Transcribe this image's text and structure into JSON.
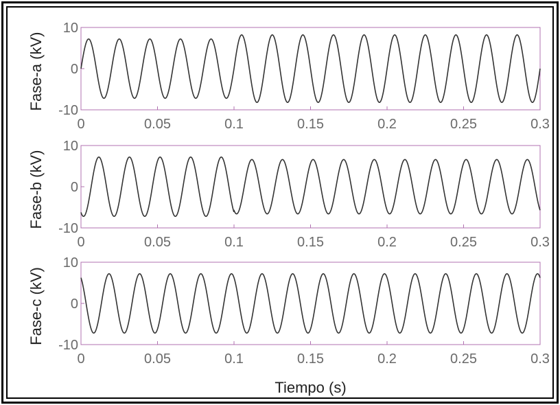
{
  "chart_data": [
    {
      "type": "line",
      "ylabel": "Fase-a (kV)",
      "xlabel": "",
      "xlim": [
        0,
        0.3
      ],
      "ylim": [
        -10,
        10
      ],
      "xticks": [
        0,
        0.05,
        0.1,
        0.15,
        0.2,
        0.25,
        0.3
      ],
      "xtick_labels": [
        "0",
        "0.05",
        "0.1",
        "0.15",
        "0.2",
        "0.25",
        "0.3"
      ],
      "yticks": [
        -10,
        0,
        10
      ],
      "ytick_labels": [
        "-10",
        "0",
        "10"
      ],
      "grid": false,
      "series": [
        {
          "frequency_hz": 50,
          "phase_deg": 0,
          "segments": [
            {
              "t_start": 0,
              "t_end": 0.1,
              "amplitude": 7.2
            },
            {
              "t_start": 0.1,
              "t_end": 0.3,
              "amplitude": 8.2
            }
          ],
          "color": "#333333"
        }
      ]
    },
    {
      "type": "line",
      "ylabel": "Fase-b (kV)",
      "xlabel": "",
      "xlim": [
        0,
        0.3
      ],
      "ylim": [
        -10,
        10
      ],
      "xticks": [
        0,
        0.05,
        0.1,
        0.15,
        0.2,
        0.25,
        0.3
      ],
      "xtick_labels": [
        "0",
        "0.05",
        "0.1",
        "0.15",
        "0.2",
        "0.25",
        "0.3"
      ],
      "yticks": [
        -10,
        0,
        10
      ],
      "ytick_labels": [
        "-10",
        "0",
        "10"
      ],
      "grid": false,
      "series": [
        {
          "frequency_hz": 50,
          "phase_deg": -120,
          "segments": [
            {
              "t_start": 0,
              "t_end": 0.1,
              "amplitude": 7.2
            },
            {
              "t_start": 0.1,
              "t_end": 0.3,
              "amplitude": 6.6
            }
          ],
          "color": "#333333"
        }
      ]
    },
    {
      "type": "line",
      "ylabel": "Fase-c (kV)",
      "xlabel": "Tiempo (s)",
      "xlim": [
        0,
        0.3
      ],
      "ylim": [
        -10,
        10
      ],
      "xticks": [
        0,
        0.05,
        0.1,
        0.15,
        0.2,
        0.25,
        0.3
      ],
      "xtick_labels": [
        "0",
        "0.05",
        "0.1",
        "0.15",
        "0.2",
        "0.25",
        "0.3"
      ],
      "yticks": [
        -10,
        0,
        10
      ],
      "ytick_labels": [
        "-10",
        "0",
        "10"
      ],
      "grid": false,
      "series": [
        {
          "frequency_hz": 50,
          "phase_deg": 120,
          "segments": [
            {
              "t_start": 0,
              "t_end": 0.3,
              "amplitude": 7.2
            }
          ],
          "color": "#333333"
        }
      ]
    }
  ],
  "colors": {
    "axes": "#b070b0",
    "curve": "#333333",
    "tick_text": "#6a6a6a"
  }
}
